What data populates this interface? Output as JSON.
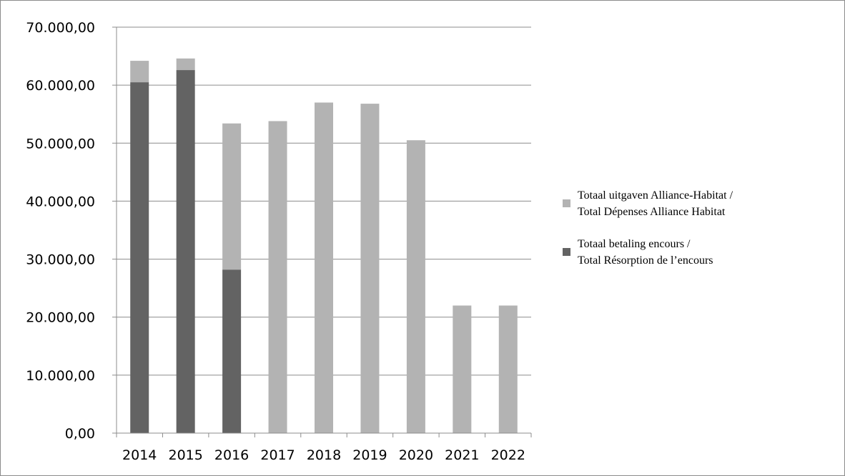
{
  "chart_data": {
    "type": "bar",
    "stacked": true,
    "categories": [
      "2014",
      "2015",
      "2016",
      "2017",
      "2018",
      "2019",
      "2020",
      "2021",
      "2022"
    ],
    "y_ticks": [
      "0,00",
      "10.000,00",
      "20.000,00",
      "30.000,00",
      "40.000,00",
      "50.000,00",
      "60.000,00",
      "70.000,00"
    ],
    "ylim": [
      0,
      70000
    ],
    "grid": true,
    "legend_position": "right",
    "series": [
      {
        "name": "Totaal betaling encours / Total Résorption de l’encours",
        "name_lines": [
          "Totaal betaling encours /",
          "Total Résorption de l’encours"
        ],
        "color": "#636363",
        "values": [
          60500,
          62600,
          28200,
          0,
          0,
          0,
          0,
          0,
          0
        ]
      },
      {
        "name": "Totaal uitgaven Alliance-Habitat / Total Dépenses Alliance Habitat",
        "name_lines": [
          "Totaal uitgaven Alliance-Habitat /",
          "Total Dépenses Alliance Habitat"
        ],
        "color": "#b3b3b3",
        "values": [
          3700,
          2000,
          25200,
          53800,
          57000,
          56800,
          50500,
          22000,
          22000
        ]
      }
    ],
    "totals": [
      64200,
      64600,
      53400,
      53800,
      57000,
      56800,
      50500,
      22000,
      22000
    ]
  }
}
